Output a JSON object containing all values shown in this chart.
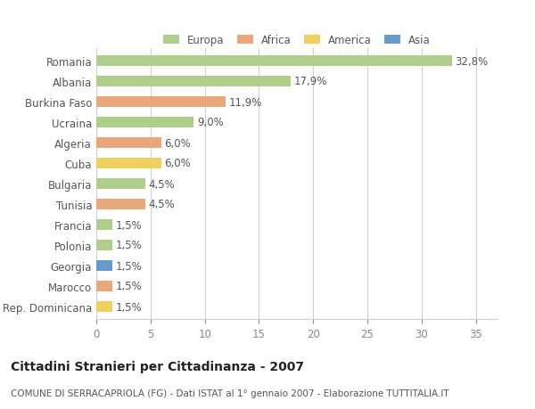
{
  "title": "Cittadini Stranieri per Cittadinanza - 2007",
  "subtitle": "COMUNE DI SERRACAPRIOLA (FG) - Dati ISTAT al 1° gennaio 2007 - Elaborazione TUTTITALIA.IT",
  "categories": [
    "Romania",
    "Albania",
    "Burkina Faso",
    "Ucraina",
    "Algeria",
    "Cuba",
    "Bulgaria",
    "Tunisia",
    "Francia",
    "Polonia",
    "Georgia",
    "Marocco",
    "Rep. Dominicana"
  ],
  "values": [
    32.8,
    17.9,
    11.9,
    9.0,
    6.0,
    6.0,
    4.5,
    4.5,
    1.5,
    1.5,
    1.5,
    1.5,
    1.5
  ],
  "labels": [
    "32,8%",
    "17,9%",
    "11,9%",
    "9,0%",
    "6,0%",
    "6,0%",
    "4,5%",
    "4,5%",
    "1,5%",
    "1,5%",
    "1,5%",
    "1,5%",
    "1,5%"
  ],
  "bar_colors": [
    "#aece8a",
    "#aece8a",
    "#e8a87c",
    "#aece8a",
    "#e8a87c",
    "#f0d060",
    "#aece8a",
    "#e8a87c",
    "#aece8a",
    "#aece8a",
    "#6699cc",
    "#e8a87c",
    "#f0d060"
  ],
  "legend": [
    {
      "label": "Europa",
      "color": "#aece8a"
    },
    {
      "label": "Africa",
      "color": "#e8a87c"
    },
    {
      "label": "America",
      "color": "#f0d060"
    },
    {
      "label": "Asia",
      "color": "#6699cc"
    }
  ],
  "xlim": [
    0,
    37
  ],
  "background_color": "#ffffff",
  "grid_color": "#d0d0d0",
  "bar_height": 0.55,
  "label_fontsize": 8.5,
  "title_fontsize": 10,
  "subtitle_fontsize": 7.5
}
